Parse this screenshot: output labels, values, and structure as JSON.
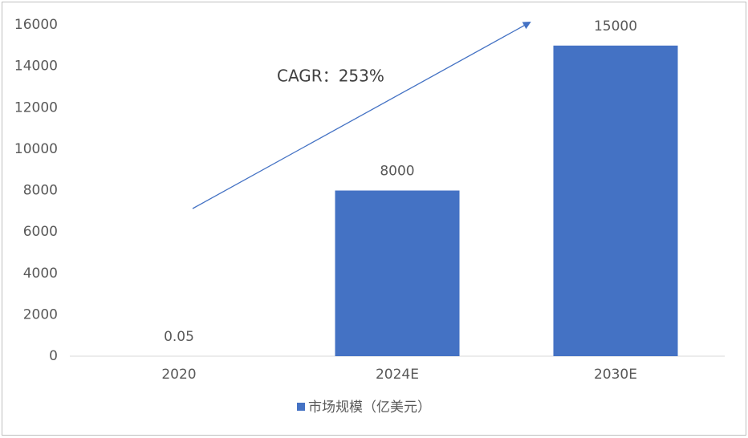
{
  "chart_data": {
    "type": "bar",
    "categories": [
      "2020",
      "2024E",
      "2030E"
    ],
    "series": [
      {
        "name": "市场规模（亿美元）",
        "color": "#4472c4",
        "values": [
          0.05,
          8000,
          15000
        ]
      }
    ],
    "ylim": [
      0,
      16000
    ],
    "yticks": [
      0,
      2000,
      4000,
      6000,
      8000,
      10000,
      12000,
      14000,
      16000
    ],
    "grid": false,
    "legend": "bottom",
    "annotation": "CAGR：253%"
  }
}
